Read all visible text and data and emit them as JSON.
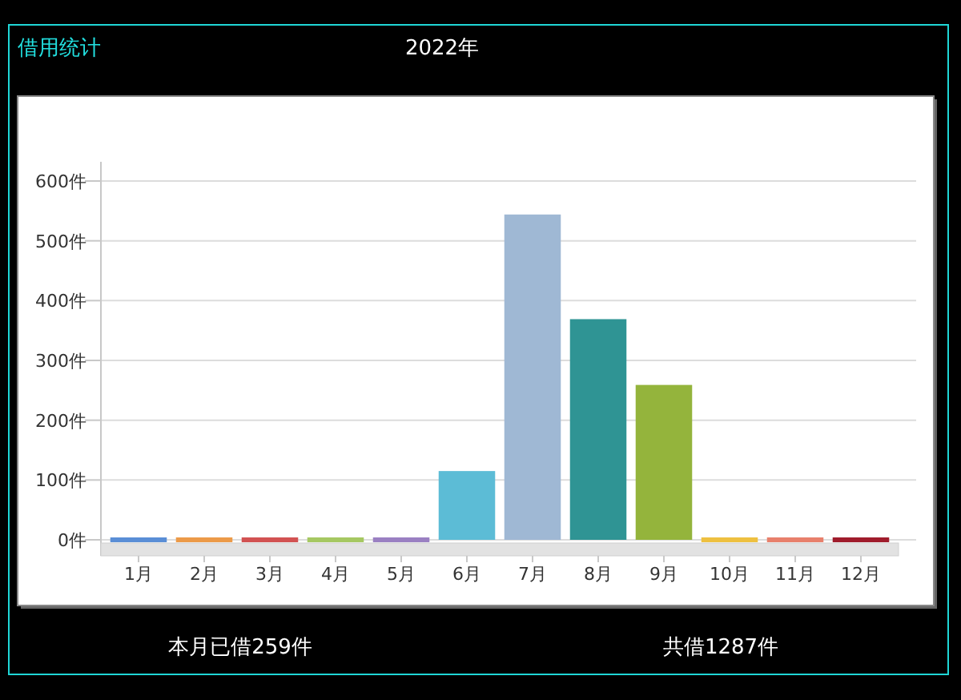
{
  "chart_data": {
    "type": "bar",
    "title": "借用统计",
    "subtitle": "2022年",
    "categories": [
      "1月",
      "2月",
      "3月",
      "4月",
      "5月",
      "6月",
      "7月",
      "8月",
      "9月",
      "10月",
      "11月",
      "12月"
    ],
    "values": [
      0,
      0,
      0,
      0,
      0,
      115,
      544,
      369,
      259,
      0,
      0,
      0
    ],
    "colors": [
      "#5a8ed6",
      "#ec9a48",
      "#d25252",
      "#a6c862",
      "#9a80c2",
      "#5cbcd6",
      "#9fb8d4",
      "#2f9494",
      "#94b43c",
      "#eec040",
      "#e8806c",
      "#a01c2c"
    ],
    "ylim": [
      0,
      600
    ],
    "yticks": [
      {
        "value": 0,
        "label": "0件"
      },
      {
        "value": 100,
        "label": "100件"
      },
      {
        "value": 200,
        "label": "200件"
      },
      {
        "value": 300,
        "label": "300件"
      },
      {
        "value": 400,
        "label": "400件"
      },
      {
        "value": 500,
        "label": "500件"
      },
      {
        "value": 600,
        "label": "600件"
      }
    ],
    "grid": "y",
    "annotations": [
      "本月已借259件",
      "共借1287件"
    ]
  }
}
